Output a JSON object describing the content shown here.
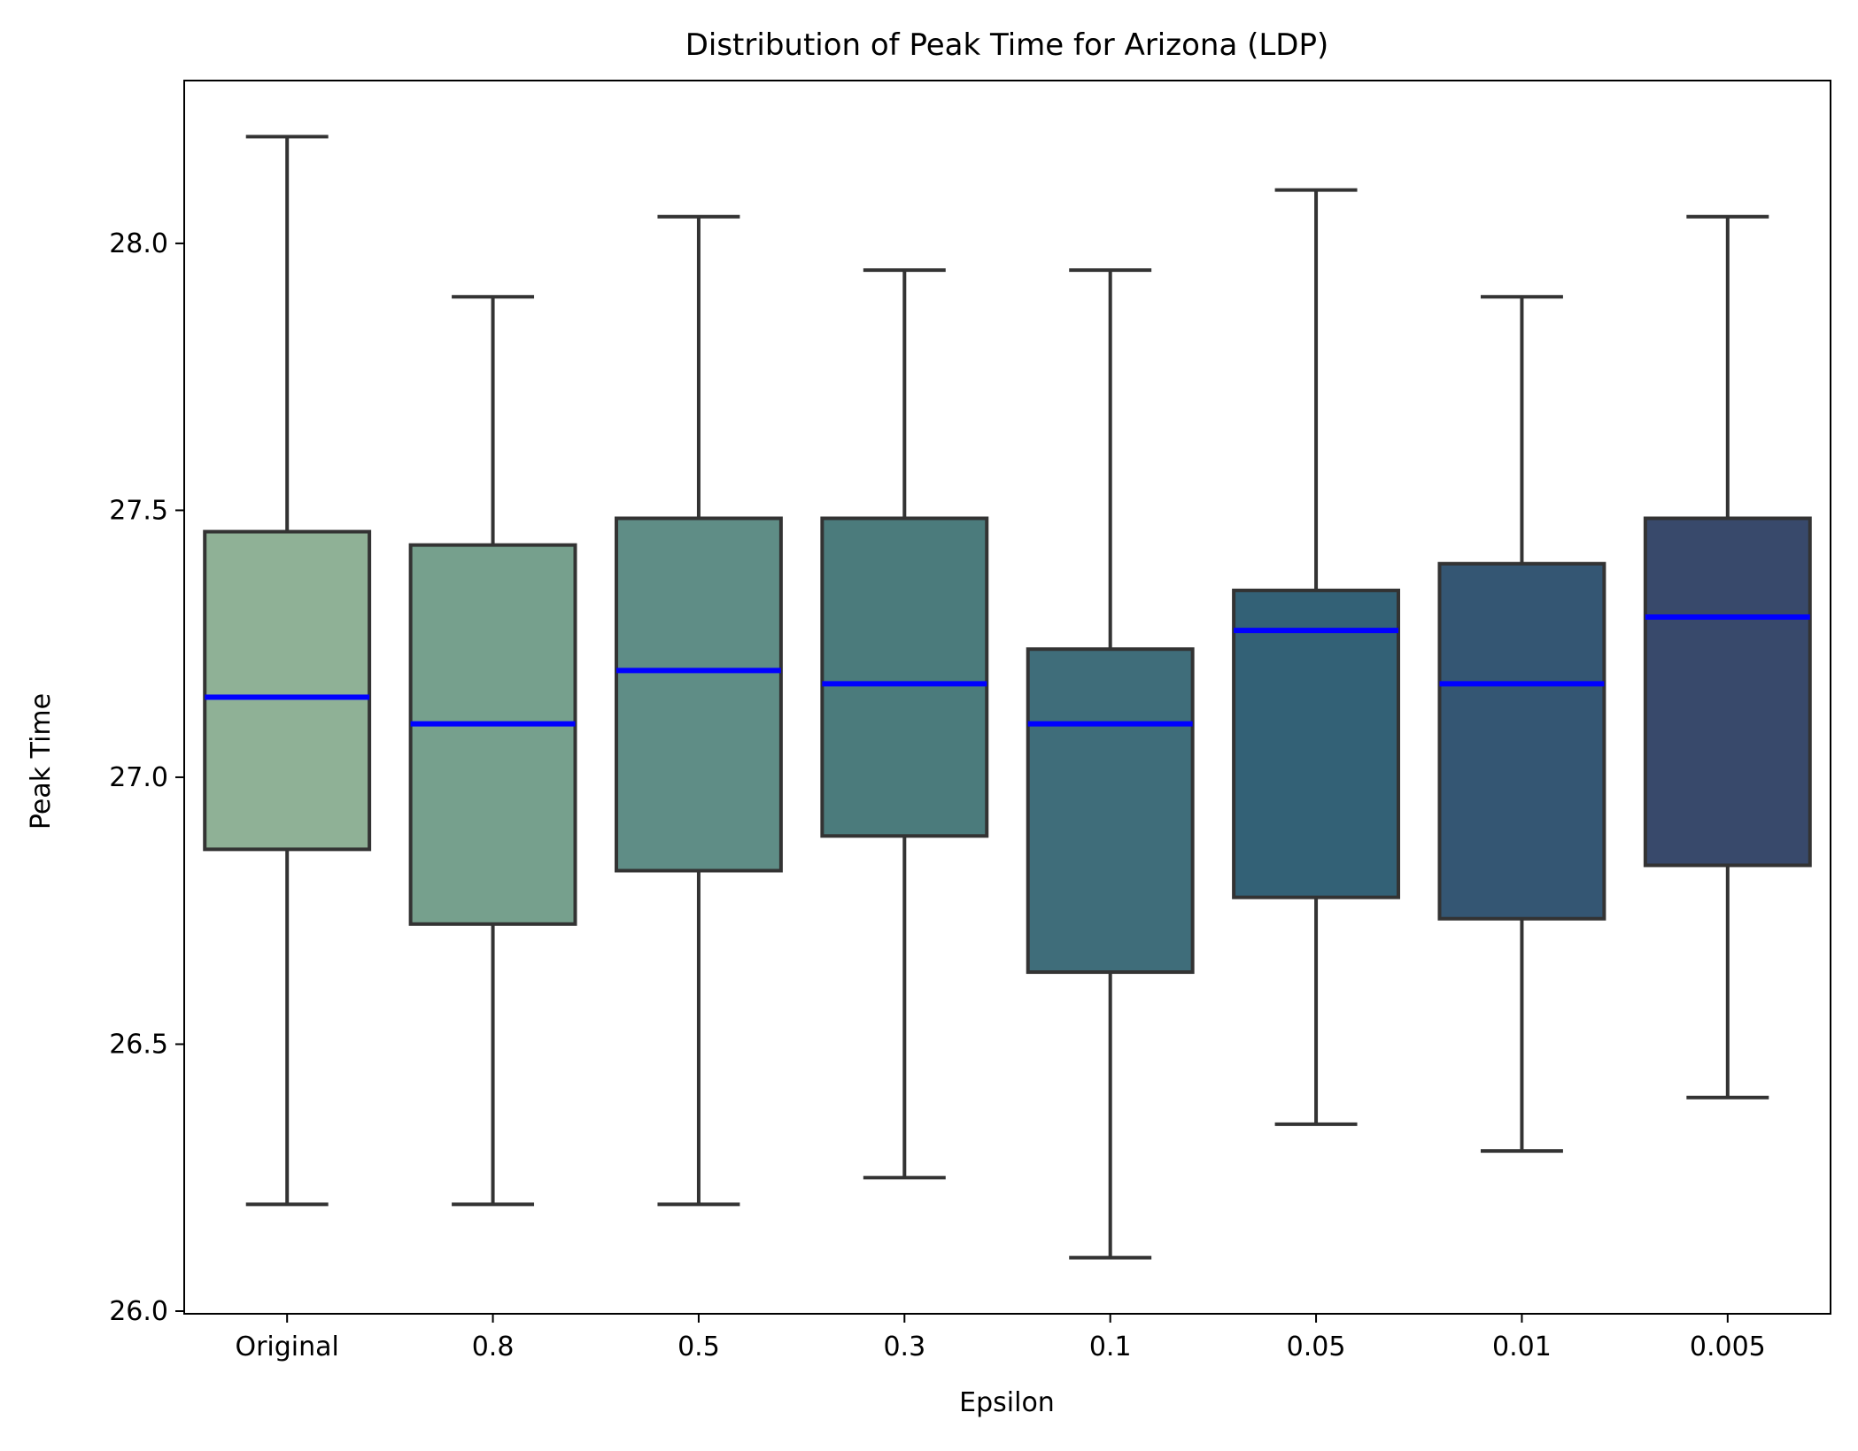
{
  "chart_data": {
    "type": "box",
    "title": "Distribution of Peak Time for Arizona (LDP)",
    "xlabel": "Epsilon",
    "ylabel": "Peak Time",
    "ylim": [
      25.995,
      28.305
    ],
    "yticks": [
      26.0,
      26.5,
      27.0,
      27.5,
      28.0
    ],
    "ytick_labels": [
      "26.0",
      "26.5",
      "27.0",
      "27.5",
      "28.0"
    ],
    "categories": [
      "Original",
      "0.8",
      "0.5",
      "0.3",
      "0.1",
      "0.05",
      "0.01",
      "0.005"
    ],
    "boxes": [
      {
        "min": 26.2,
        "q1": 26.865,
        "median": 27.15,
        "q3": 27.46,
        "max": 28.2
      },
      {
        "min": 26.2,
        "q1": 26.725,
        "median": 27.1,
        "q3": 27.435,
        "max": 27.9
      },
      {
        "min": 26.2,
        "q1": 26.825,
        "median": 27.2,
        "q3": 27.485,
        "max": 28.05
      },
      {
        "min": 26.25,
        "q1": 26.89,
        "median": 27.175,
        "q3": 27.485,
        "max": 27.95
      },
      {
        "min": 26.1,
        "q1": 26.635,
        "median": 27.1,
        "q3": 27.24,
        "max": 27.95
      },
      {
        "min": 26.35,
        "q1": 26.775,
        "median": 27.275,
        "q3": 27.35,
        "max": 28.1
      },
      {
        "min": 26.3,
        "q1": 26.735,
        "median": 27.175,
        "q3": 27.4,
        "max": 27.9
      },
      {
        "min": 26.4,
        "q1": 26.835,
        "median": 27.3,
        "q3": 27.485,
        "max": 28.05
      }
    ],
    "box_colors": [
      "#8fb196",
      "#76a08d",
      "#5f8d86",
      "#4b7b7c",
      "#3f6d7a",
      "#336176",
      "#345673",
      "#38496b"
    ],
    "median_color": "#0000ff",
    "edge_color": "#333333",
    "grid": false,
    "legend": "none"
  }
}
